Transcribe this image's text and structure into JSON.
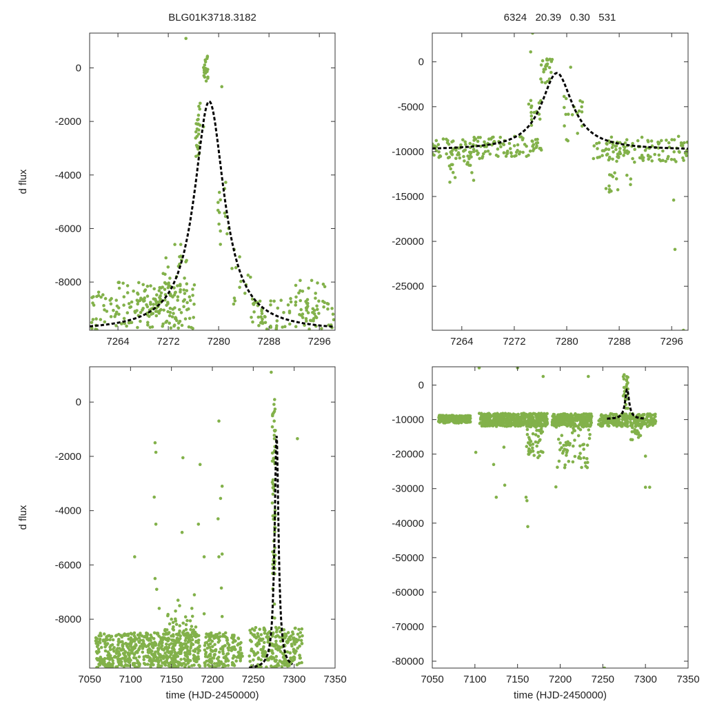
{
  "header": {
    "object_id": "BLG01K3718.3182",
    "params": "6324   20.39   0.30   531"
  },
  "colors": {
    "points": "#82b14a",
    "model": "#000000",
    "frame": "#333333"
  },
  "chart_data": [
    {
      "id": "zoom-detail",
      "type": "scatter",
      "xlabel": "",
      "ylabel": "d flux",
      "xlim": [
        7259.5,
        7298.5
      ],
      "ylim": [
        -9800,
        1300
      ],
      "xticks": [
        7264,
        7272,
        7280,
        7288,
        7296
      ],
      "xtick_labels": [
        "7264",
        "7272",
        "7280",
        "7288",
        "7296"
      ],
      "yticks": [
        0,
        -2000,
        -4000,
        -6000,
        -8000
      ],
      "ytick_labels": [
        "0",
        "-2000",
        "-4000",
        "-6000",
        "-8000"
      ],
      "model": {
        "type": "lorentzian",
        "t0": 7278.5,
        "amplitude": 8600,
        "baseline": -9850,
        "hwhm": 2.9,
        "x_range": [
          7259.5,
          7298.5
        ]
      },
      "series": [
        {
          "name": "cluster",
          "x0": 7259.5,
          "x1": 7276.2,
          "y0": -9780,
          "y1": -8000,
          "n": 140,
          "seed": 11
        },
        {
          "name": "cluster",
          "x0": 7267,
          "x1": 7274,
          "y0": -9400,
          "y1": -8100,
          "n": 60,
          "seed": 12
        },
        {
          "name": "cluster",
          "x0": 7271,
          "x1": 7275,
          "y0": -8400,
          "y1": -6300,
          "n": 22,
          "seed": 13
        },
        {
          "name": "cluster",
          "x0": 7276.2,
          "x1": 7277.2,
          "y0": -3400,
          "y1": -1000,
          "n": 24,
          "seed": 14
        },
        {
          "name": "cluster",
          "x0": 7277.6,
          "x1": 7278.3,
          "y0": -500,
          "y1": 450,
          "n": 22,
          "seed": 15
        },
        {
          "name": "cluster",
          "x0": 7279.8,
          "x1": 7281.8,
          "y0": -6900,
          "y1": -4200,
          "n": 14,
          "seed": 16
        },
        {
          "name": "cluster",
          "x0": 7281.5,
          "x1": 7285.5,
          "y0": -9000,
          "y1": -6300,
          "n": 12,
          "seed": 17
        },
        {
          "name": "cluster",
          "x0": 7285,
          "x1": 7298.5,
          "y0": -9780,
          "y1": -8600,
          "n": 90,
          "seed": 18
        },
        {
          "name": "cluster",
          "x0": 7292,
          "x1": 7297.5,
          "y0": -9200,
          "y1": -7900,
          "n": 20,
          "seed": 19
        },
        {
          "name": "points",
          "x": [
            7274.8,
            7280.5,
            7282.5,
            7277.6,
            7273.3
          ],
          "y": [
            1100,
            -700,
            -8600,
            -2200,
            -7800
          ]
        }
      ]
    },
    {
      "id": "zoom-overview",
      "type": "scatter",
      "xlabel": "",
      "ylabel": "",
      "xlim": [
        7259.5,
        7298.5
      ],
      "ylim": [
        -29900,
        3200
      ],
      "xticks": [
        7264,
        7272,
        7280,
        7288,
        7296
      ],
      "xtick_labels": [
        "7264",
        "7272",
        "7280",
        "7288",
        "7296"
      ],
      "yticks": [
        0,
        -5000,
        -10000,
        -15000,
        -20000,
        -25000
      ],
      "ytick_labels": [
        "0",
        "-5000",
        "-10000",
        "-15000",
        "-20000",
        "-25000"
      ],
      "model": {
        "type": "lorentzian",
        "t0": 7278.5,
        "amplitude": 8600,
        "baseline": -9850,
        "hwhm": 2.9,
        "x_range": [
          7259.5,
          7298.5
        ]
      },
      "series": [
        {
          "name": "cluster",
          "x0": 7259.5,
          "x1": 7276.2,
          "y0": -10800,
          "y1": -8300,
          "n": 150,
          "seed": 21
        },
        {
          "name": "cluster",
          "x0": 7262,
          "x1": 7266,
          "y0": -13600,
          "y1": -11000,
          "n": 14,
          "seed": 22
        },
        {
          "name": "cluster",
          "x0": 7274,
          "x1": 7276.5,
          "y0": -7200,
          "y1": -4000,
          "n": 14,
          "seed": 23
        },
        {
          "name": "cluster",
          "x0": 7276,
          "x1": 7278,
          "y0": -2400,
          "y1": 400,
          "n": 22,
          "seed": 24
        },
        {
          "name": "cluster",
          "x0": 7279.5,
          "x1": 7282.5,
          "y0": -8900,
          "y1": -3300,
          "n": 18,
          "seed": 25
        },
        {
          "name": "cluster",
          "x0": 7284,
          "x1": 7298.5,
          "y0": -11200,
          "y1": -8300,
          "n": 120,
          "seed": 26
        },
        {
          "name": "cluster",
          "x0": 7285.8,
          "x1": 7289.8,
          "y0": -14800,
          "y1": -11800,
          "n": 14,
          "seed": 27
        },
        {
          "name": "points",
          "x": [
            7274.8,
            7274.5,
            7296.3,
            7296.5,
            7297.8,
            7280.6,
            7275.0
          ],
          "y": [
            3200,
            1100,
            -15400,
            -20900,
            -29900,
            -600,
            -9700
          ]
        }
      ]
    },
    {
      "id": "full-detail",
      "type": "scatter",
      "xlabel": "time (HJD-2450000)",
      "ylabel": "d flux",
      "xlim": [
        7050,
        7350
      ],
      "ylim": [
        -9800,
        1300
      ],
      "xticks": [
        7050,
        7100,
        7150,
        7200,
        7250,
        7300,
        7350
      ],
      "xtick_labels": [
        "7050",
        "7100",
        "7150",
        "7200",
        "7250",
        "7300",
        "7350"
      ],
      "yticks": [
        0,
        -2000,
        -4000,
        -6000,
        -8000
      ],
      "ytick_labels": [
        "0",
        "-2000",
        "-4000",
        "-6000",
        "-8000"
      ],
      "model": {
        "type": "lorentzian",
        "t0": 7278.5,
        "amplitude": 8600,
        "baseline": -9850,
        "hwhm": 2.9,
        "x_range": [
          7245,
          7298
        ]
      },
      "series": [
        {
          "name": "cluster",
          "x0": 7057,
          "x1": 7185,
          "y0": -9780,
          "y1": -8500,
          "n": 560,
          "seed": 31
        },
        {
          "name": "cluster",
          "x0": 7140,
          "x1": 7180,
          "y0": -9500,
          "y1": -7800,
          "n": 80,
          "seed": 32
        },
        {
          "name": "cluster",
          "x0": 7190,
          "x1": 7237,
          "y0": -9780,
          "y1": -8500,
          "n": 170,
          "seed": 33
        },
        {
          "name": "cluster",
          "x0": 7245,
          "x1": 7310,
          "y0": -9780,
          "y1": -8300,
          "n": 230,
          "seed": 34
        },
        {
          "name": "cluster",
          "x0": 7273,
          "x1": 7277,
          "y0": -8000,
          "y1": 400,
          "n": 60,
          "seed": 35
        },
        {
          "name": "points",
          "x": [
            7105,
            7130,
            7131,
            7129,
            7131,
            7130,
            7132,
            7164,
            7163,
            7158,
            7185,
            7183,
            7190,
            7208,
            7207,
            7212,
            7210,
            7212,
            7208,
            7211,
            7304,
            7272,
            7135,
            7160,
            7190,
            7150,
            7175,
            7155,
            7212,
            7168,
            7178
          ],
          "y": [
            -5700,
            -1500,
            -1850,
            -3500,
            -4500,
            -6500,
            -6900,
            -2050,
            -4800,
            -7300,
            -2300,
            -4500,
            -5700,
            -700,
            -4300,
            -3100,
            -3550,
            -5600,
            -5700,
            -6850,
            -1350,
            1100,
            -7600,
            -7500,
            -7800,
            -8000,
            -7600,
            -7700,
            -7900,
            -8200,
            -7100
          ]
        }
      ]
    },
    {
      "id": "full-overview",
      "type": "scatter",
      "xlabel": "time (HJD-2450000)",
      "ylabel": "",
      "xlim": [
        7050,
        7350
      ],
      "ylim": [
        -82000,
        5300
      ],
      "xticks": [
        7050,
        7100,
        7150,
        7200,
        7250,
        7300,
        7350
      ],
      "xtick_labels": [
        "7050",
        "7100",
        "7150",
        "7200",
        "7250",
        "7300",
        "7350"
      ],
      "yticks": [
        0,
        -10000,
        -20000,
        -30000,
        -40000,
        -50000,
        -60000,
        -70000,
        -80000
      ],
      "ytick_labels": [
        "0",
        "-10000",
        "-20000",
        "-30000",
        "-40000",
        "-50000",
        "-60000",
        "-70000",
        "-80000"
      ],
      "model": {
        "type": "lorentzian",
        "t0": 7278.5,
        "amplitude": 8600,
        "baseline": -9850,
        "hwhm": 2.9,
        "x_range": [
          7255,
          7298
        ]
      },
      "series": [
        {
          "name": "cluster",
          "x0": 7057,
          "x1": 7095,
          "y0": -11000,
          "y1": -8800,
          "n": 200,
          "seed": 41
        },
        {
          "name": "cluster",
          "x0": 7105,
          "x1": 7185,
          "y0": -12000,
          "y1": -8200,
          "n": 500,
          "seed": 42
        },
        {
          "name": "cluster",
          "x0": 7190,
          "x1": 7237,
          "y0": -12000,
          "y1": -8300,
          "n": 260,
          "seed": 43
        },
        {
          "name": "cluster",
          "x0": 7245,
          "x1": 7312,
          "y0": -12000,
          "y1": -8300,
          "n": 260,
          "seed": 44
        },
        {
          "name": "cluster",
          "x0": 7160,
          "x1": 7180,
          "y0": -20500,
          "y1": -12000,
          "n": 45,
          "seed": 45
        },
        {
          "name": "cluster",
          "x0": 7195,
          "x1": 7235,
          "y0": -24000,
          "y1": -12000,
          "n": 55,
          "seed": 46
        },
        {
          "name": "cluster",
          "x0": 7274,
          "x1": 7280,
          "y0": -7000,
          "y1": 2500,
          "n": 22,
          "seed": 47
        },
        {
          "name": "cluster",
          "x0": 7284,
          "x1": 7295,
          "y0": -16000,
          "y1": -12000,
          "n": 18,
          "seed": 48
        },
        {
          "name": "points",
          "x": [
            7105,
            7150,
            7180,
            7233,
            7275,
            7101,
            7122,
            7125,
            7135,
            7160,
            7161,
            7162,
            7134,
            7174,
            7164,
            7252,
            7300,
            7305,
            7300,
            7283,
            7195,
            7230
          ],
          "y": [
            5000,
            5000,
            2500,
            2500,
            3000,
            -19500,
            -23000,
            -32500,
            -29000,
            -32500,
            -33500,
            -41000,
            -18000,
            -21000,
            -17000,
            -82000,
            -29600,
            -29600,
            -20600,
            -15800,
            -29500,
            -23500
          ]
        }
      ]
    }
  ]
}
